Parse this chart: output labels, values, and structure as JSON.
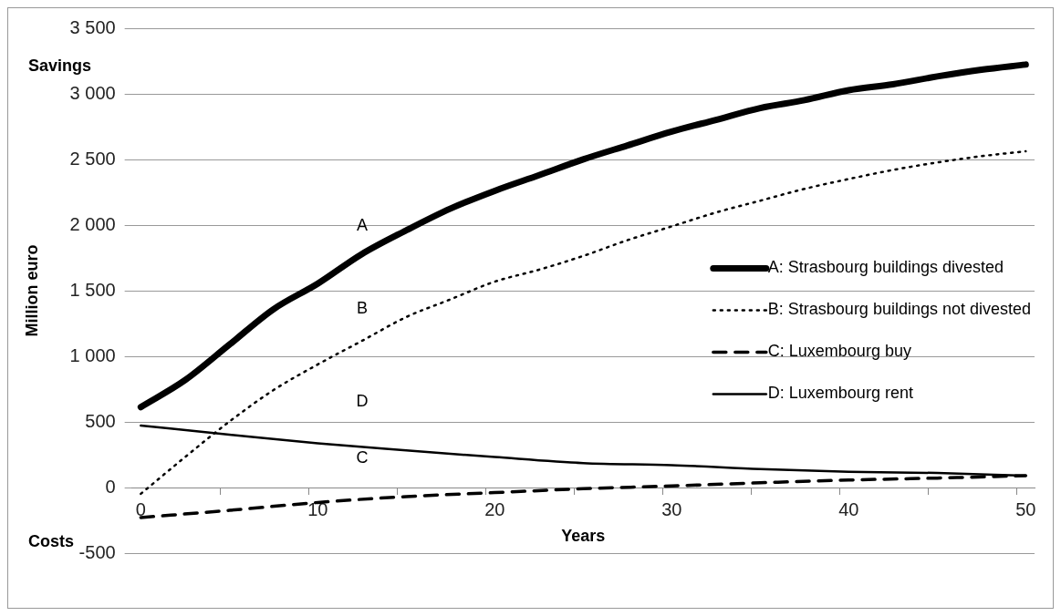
{
  "chart_data": {
    "type": "line",
    "xlabel": "Years",
    "ylabel": "Million euro",
    "xlim": [
      -0.5,
      50.5
    ],
    "xticks": [
      0,
      {
        "value": 4.5,
        "label": null
      },
      {
        "value": 9.5,
        "label": null
      },
      10,
      {
        "value": 14.5,
        "label": null
      },
      {
        "value": 19.5,
        "label": null
      },
      20,
      {
        "value": 24.5,
        "label": null
      },
      {
        "value": 29.5,
        "label": null
      },
      30,
      {
        "value": 34.5,
        "label": null
      },
      {
        "value": 39.5,
        "label": null
      },
      40,
      {
        "value": 44.5,
        "label": null
      },
      {
        "value": 49.5,
        "label": null
      },
      50
    ],
    "ylim": [
      -500,
      3500
    ],
    "yticks": [
      -500,
      0,
      500,
      {
        "value": 1000,
        "label": "1 000"
      },
      {
        "value": 1500,
        "label": "1 500"
      },
      {
        "value": 2000,
        "label": "2 000"
      },
      {
        "value": 2500,
        "label": "2 500"
      },
      {
        "value": 3000,
        "label": "3 000"
      },
      {
        "value": 3500,
        "label": "3 500"
      }
    ],
    "grid": "y",
    "legend": "right",
    "marker": "none",
    "series": [
      {
        "name": "A: Strasbourg buildings divested",
        "color": "#000000",
        "line_style": "solid",
        "x": [
          0,
          2.5,
          5,
          7.5,
          10,
          12.5,
          15,
          17.5,
          20,
          22.5,
          25,
          27.5,
          30,
          32.5,
          35,
          37.5,
          40,
          42.5,
          45,
          47.5,
          50
        ],
        "values": [
          613,
          818,
          1088,
          1359,
          1554,
          1780,
          1960,
          2126,
          2261,
          2380,
          2501,
          2607,
          2712,
          2802,
          2892,
          2952,
          3028,
          3073,
          3133,
          3184,
          3223
        ]
      },
      {
        "name": "B: Strasbourg buildings not divested",
        "color": "#000000",
        "line_style": "dotted",
        "x": [
          0,
          2.5,
          5,
          7.5,
          10,
          12.5,
          15,
          17.5,
          20,
          22.5,
          25,
          27.5,
          30,
          32.5,
          35,
          37.5,
          40,
          42.5,
          45,
          47.5,
          50
        ],
        "values": [
          -48,
          232,
          502,
          743,
          938,
          1118,
          1299,
          1434,
          1569,
          1660,
          1765,
          1885,
          1990,
          2096,
          2186,
          2276,
          2351,
          2420,
          2477,
          2525,
          2562
        ]
      },
      {
        "name": "C: Luxembourg buy",
        "color": "#000000",
        "line_style": "dashed",
        "x": [
          0,
          5,
          10,
          15,
          20,
          25,
          30,
          35,
          40,
          45,
          50
        ],
        "values": [
          -229,
          -174,
          -114,
          -69,
          -39,
          -9,
          12,
          36,
          57,
          72,
          90
        ]
      },
      {
        "name": "D: Luxembourg rent",
        "color": "#000000",
        "line_style": "solid",
        "x": [
          0,
          5,
          10,
          15,
          20,
          25,
          30,
          35,
          40,
          45,
          50
        ],
        "values": [
          472,
          403,
          337,
          283,
          232,
          186,
          171,
          141,
          120,
          111,
          90
        ]
      }
    ],
    "annotations": [
      "A",
      "B",
      "C",
      "D",
      "Savings",
      "Costs"
    ]
  }
}
